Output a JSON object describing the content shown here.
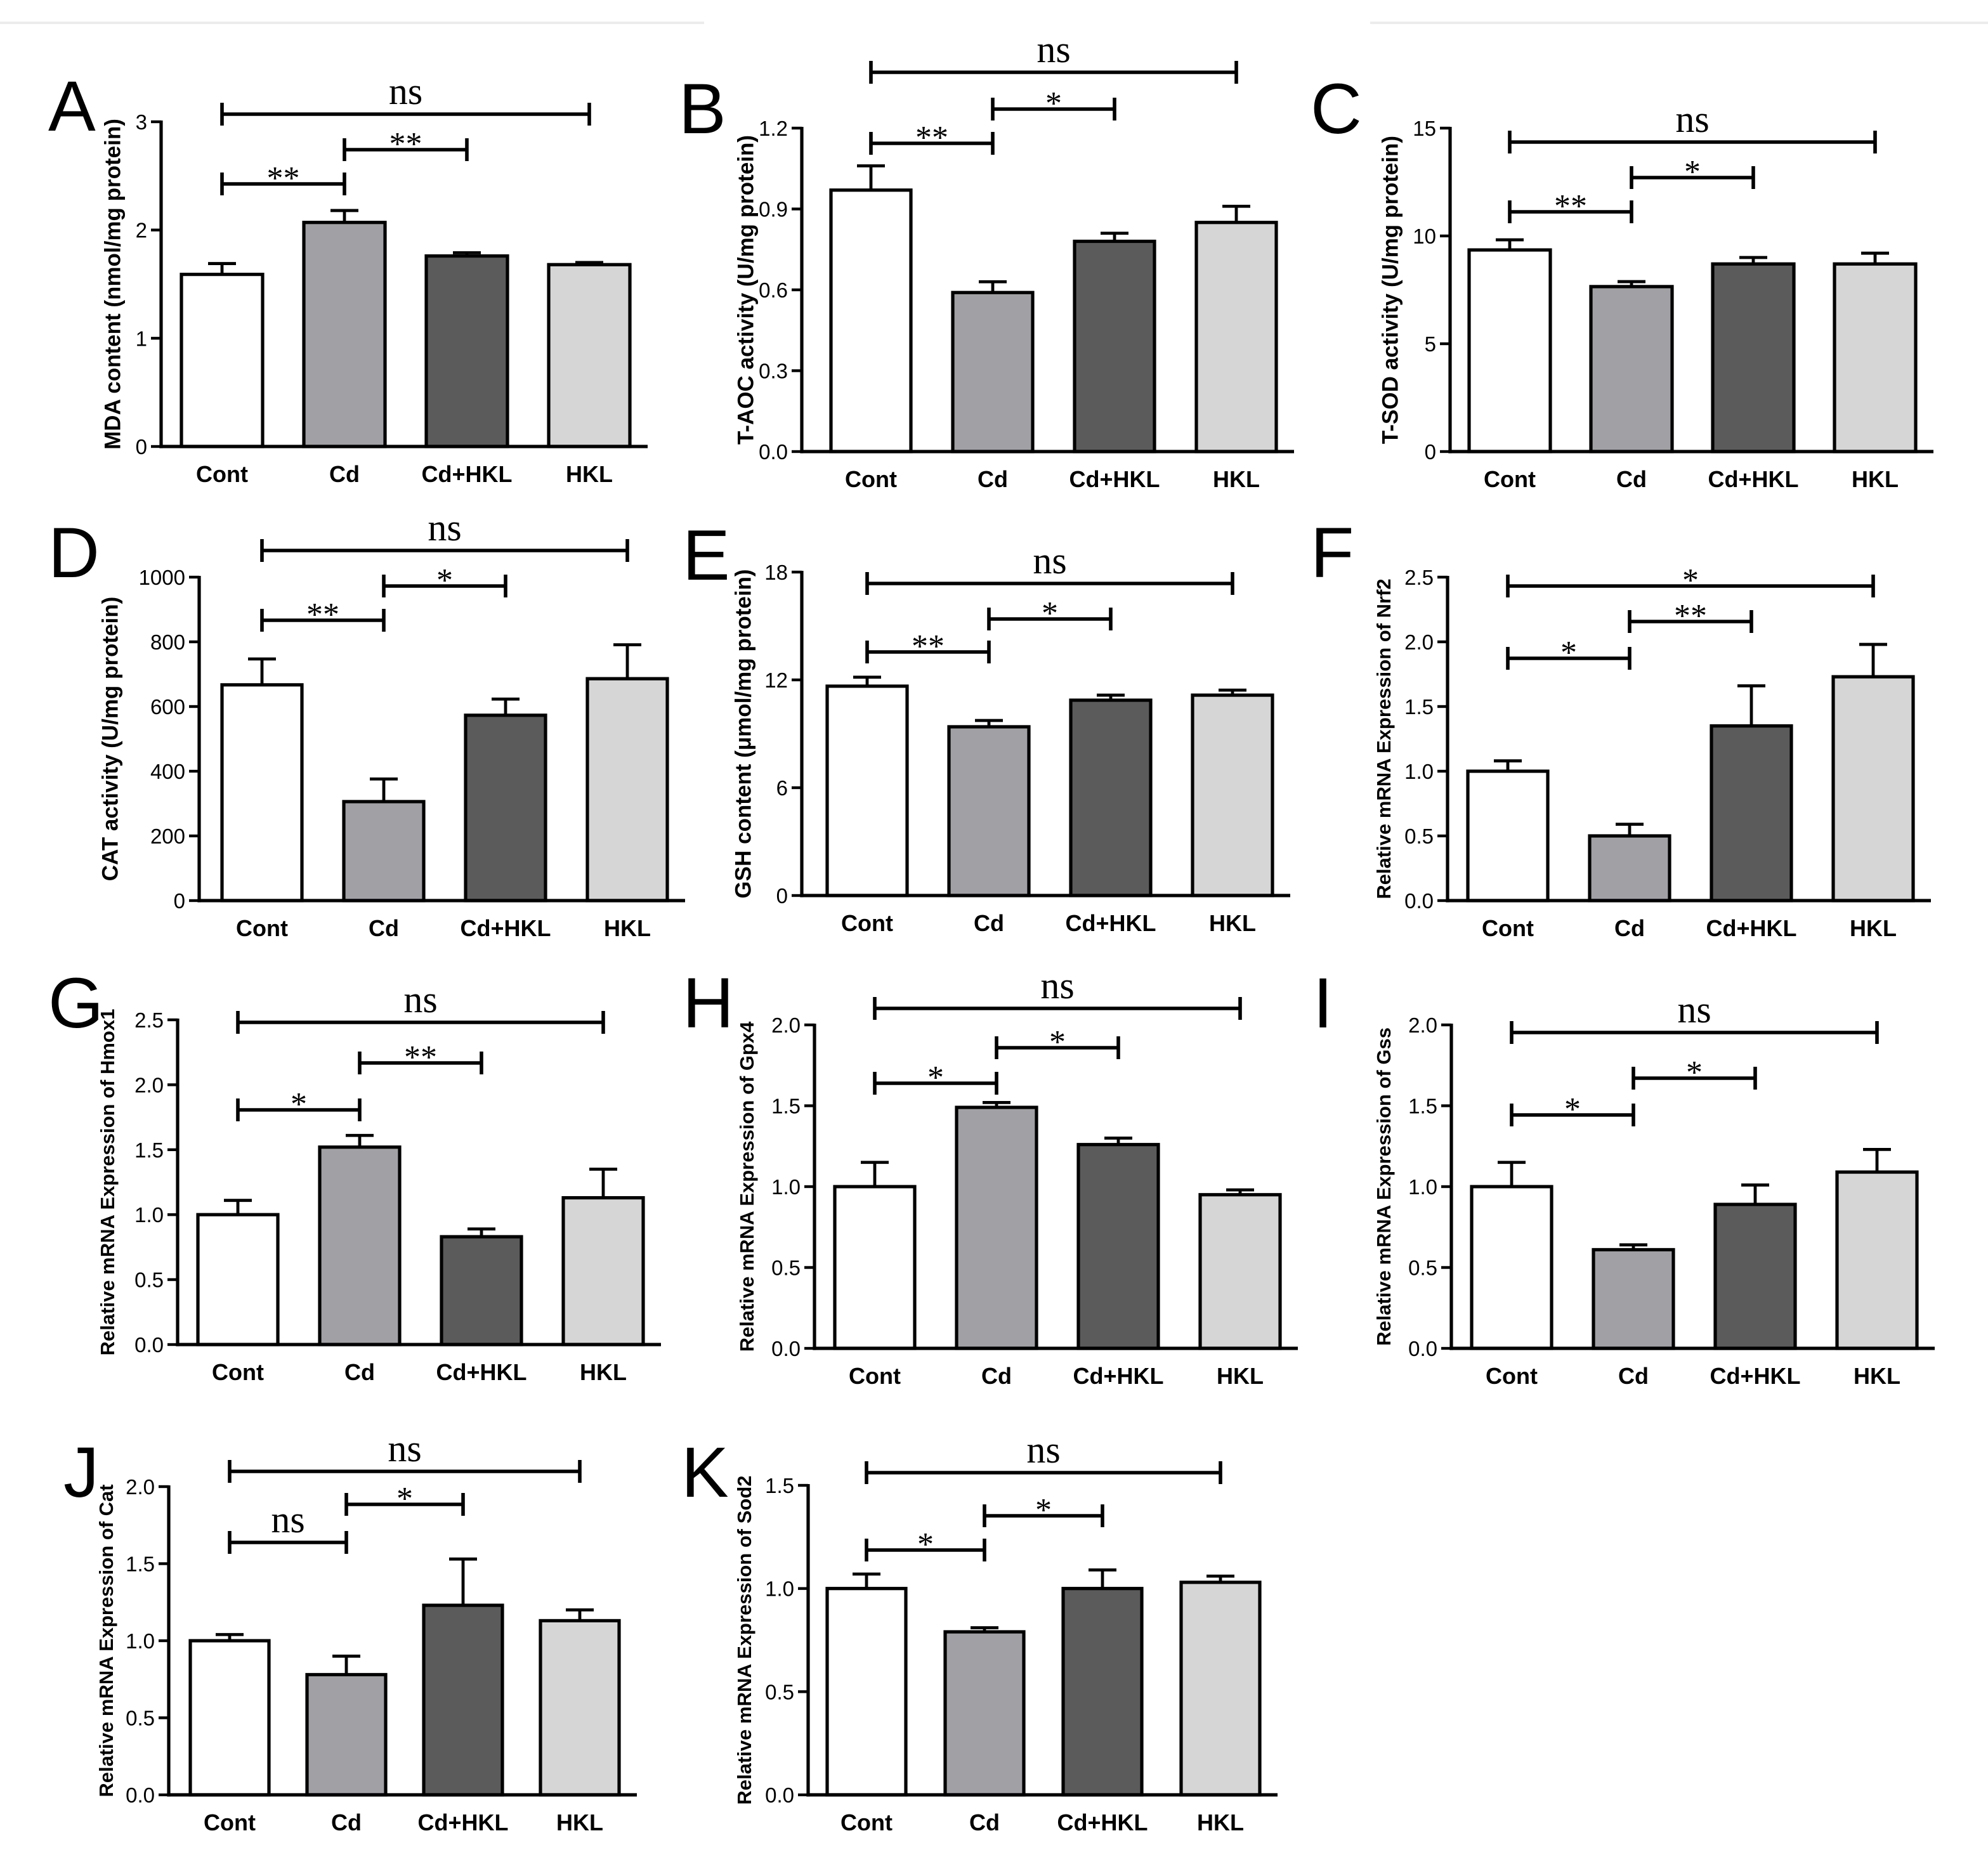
{
  "bar_colors": [
    "#ffffff",
    "#a1a1a5",
    "#5b5b5b",
    "#d6d6d6"
  ],
  "chart_data": [
    {
      "panel": "A",
      "type": "bar",
      "ylabel": "MDA content (nmol/mg protein)",
      "categories": [
        "Cont",
        "Cd",
        "Cd+HKL",
        "HKL"
      ],
      "values": [
        1.59,
        2.07,
        1.76,
        1.68
      ],
      "errors": [
        0.1,
        0.11,
        0.03,
        0.02
      ],
      "ylim": [
        0,
        3
      ],
      "yticks": [
        0,
        1,
        2,
        3
      ],
      "ytick_labels": [
        "0",
        "1",
        "2",
        "3"
      ],
      "comparisons": [
        {
          "pair": [
            0,
            3
          ],
          "label": "ns"
        },
        {
          "pair": [
            1,
            2
          ],
          "label": "**"
        },
        {
          "pair": [
            0,
            1
          ],
          "label": "**"
        }
      ]
    },
    {
      "panel": "B",
      "type": "bar",
      "ylabel": "T-AOC activity (U/mg protein)",
      "categories": [
        "Cont",
        "Cd",
        "Cd+HKL",
        "HKL"
      ],
      "values": [
        0.97,
        0.59,
        0.78,
        0.85
      ],
      "errors": [
        0.09,
        0.04,
        0.03,
        0.06
      ],
      "ylim": [
        0,
        1.2
      ],
      "yticks": [
        0,
        0.3,
        0.6,
        0.9,
        1.2
      ],
      "ytick_labels": [
        "0.0",
        "0.3",
        "0.6",
        "0.9",
        "1.2"
      ],
      "comparisons": [
        {
          "pair": [
            0,
            3
          ],
          "label": "ns"
        },
        {
          "pair": [
            1,
            2
          ],
          "label": "*"
        },
        {
          "pair": [
            0,
            1
          ],
          "label": "**"
        }
      ]
    },
    {
      "panel": "C",
      "type": "bar",
      "ylabel": "T-SOD activity (U/mg protein)",
      "categories": [
        "Cont",
        "Cd",
        "Cd+HKL",
        "HKL"
      ],
      "values": [
        9.35,
        7.65,
        8.7,
        8.7
      ],
      "errors": [
        0.47,
        0.23,
        0.3,
        0.5
      ],
      "ylim": [
        0,
        15
      ],
      "yticks": [
        0,
        5,
        10,
        15
      ],
      "ytick_labels": [
        "0",
        "5",
        "10",
        "15"
      ],
      "comparisons": [
        {
          "pair": [
            0,
            3
          ],
          "label": "ns"
        },
        {
          "pair": [
            1,
            2
          ],
          "label": "*"
        },
        {
          "pair": [
            0,
            1
          ],
          "label": "**"
        }
      ]
    },
    {
      "panel": "D",
      "type": "bar",
      "ylabel": "CAT activity (U/mg protein)",
      "categories": [
        "Cont",
        "Cd",
        "Cd+HKL",
        "HKL"
      ],
      "values": [
        667,
        306,
        573,
        686
      ],
      "errors": [
        80,
        70,
        50,
        105
      ],
      "ylim": [
        0,
        1000
      ],
      "yticks": [
        0,
        200,
        400,
        600,
        800,
        1000
      ],
      "ytick_labels": [
        "0",
        "200",
        "400",
        "600",
        "800",
        "1000"
      ],
      "comparisons": [
        {
          "pair": [
            0,
            3
          ],
          "label": "ns"
        },
        {
          "pair": [
            1,
            2
          ],
          "label": "*"
        },
        {
          "pair": [
            0,
            1
          ],
          "label": "**"
        }
      ]
    },
    {
      "panel": "E",
      "type": "bar",
      "ylabel": "GSH content (μmol/mg protein)",
      "categories": [
        "Cont",
        "Cd",
        "Cd+HKL",
        "HKL"
      ],
      "values": [
        11.65,
        9.39,
        10.87,
        11.15
      ],
      "errors": [
        0.5,
        0.35,
        0.28,
        0.28
      ],
      "ylim": [
        0,
        18
      ],
      "yticks": [
        0,
        6,
        12,
        18
      ],
      "ytick_labels": [
        "0",
        "6",
        "12",
        "18"
      ],
      "comparisons": [
        {
          "pair": [
            0,
            3
          ],
          "label": "ns"
        },
        {
          "pair": [
            1,
            2
          ],
          "label": "*"
        },
        {
          "pair": [
            0,
            1
          ],
          "label": "**"
        }
      ]
    },
    {
      "panel": "F",
      "type": "bar",
      "ylabel": "Relative mRNA Expression of Nrf2",
      "categories": [
        "Cont",
        "Cd",
        "Cd+HKL",
        "HKL"
      ],
      "values": [
        1.0,
        0.5,
        1.35,
        1.73
      ],
      "errors": [
        0.08,
        0.09,
        0.31,
        0.25
      ],
      "ylim": [
        0,
        2.5
      ],
      "yticks": [
        0,
        0.5,
        1.0,
        1.5,
        2.0,
        2.5
      ],
      "ytick_labels": [
        "0.0",
        "0.5",
        "1.0",
        "1.5",
        "2.0",
        "2.5"
      ],
      "comparisons": [
        {
          "pair": [
            0,
            3
          ],
          "label": "*"
        },
        {
          "pair": [
            1,
            2
          ],
          "label": "**"
        },
        {
          "pair": [
            0,
            1
          ],
          "label": "*"
        }
      ]
    },
    {
      "panel": "G",
      "type": "bar",
      "ylabel": "Relative mRNA Expression of Hmox1",
      "categories": [
        "Cont",
        "Cd",
        "Cd+HKL",
        "HKL"
      ],
      "values": [
        1.0,
        1.52,
        0.83,
        1.13
      ],
      "errors": [
        0.11,
        0.09,
        0.06,
        0.22
      ],
      "ylim": [
        0,
        2.5
      ],
      "yticks": [
        0,
        0.5,
        1.0,
        1.5,
        2.0,
        2.5
      ],
      "ytick_labels": [
        "0.0",
        "0.5",
        "1.0",
        "1.5",
        "2.0",
        "2.5"
      ],
      "comparisons": [
        {
          "pair": [
            0,
            3
          ],
          "label": "ns"
        },
        {
          "pair": [
            1,
            2
          ],
          "label": "**"
        },
        {
          "pair": [
            0,
            1
          ],
          "label": "*"
        }
      ]
    },
    {
      "panel": "H",
      "type": "bar",
      "ylabel": "Relative mRNA Expression of Gpx4",
      "categories": [
        "Cont",
        "Cd",
        "Cd+HKL",
        "HKL"
      ],
      "values": [
        1.0,
        1.49,
        1.26,
        0.95
      ],
      "errors": [
        0.15,
        0.03,
        0.04,
        0.03
      ],
      "ylim": [
        0,
        2.0
      ],
      "yticks": [
        0,
        0.5,
        1.0,
        1.5,
        2.0
      ],
      "ytick_labels": [
        "0.0",
        "0.5",
        "1.0",
        "1.5",
        "2.0"
      ],
      "comparisons": [
        {
          "pair": [
            0,
            3
          ],
          "label": "ns"
        },
        {
          "pair": [
            1,
            2
          ],
          "label": "*"
        },
        {
          "pair": [
            0,
            1
          ],
          "label": "*"
        }
      ]
    },
    {
      "panel": "I",
      "type": "bar",
      "ylabel": "Relative mRNA Expression of Gss",
      "categories": [
        "Cont",
        "Cd",
        "Cd+HKL",
        "HKL"
      ],
      "values": [
        1.0,
        0.61,
        0.89,
        1.09
      ],
      "errors": [
        0.15,
        0.03,
        0.12,
        0.14
      ],
      "ylim": [
        0,
        2.0
      ],
      "yticks": [
        0,
        0.5,
        1.0,
        1.5,
        2.0
      ],
      "ytick_labels": [
        "0.0",
        "0.5",
        "1.0",
        "1.5",
        "2.0"
      ],
      "comparisons": [
        {
          "pair": [
            0,
            3
          ],
          "label": "ns"
        },
        {
          "pair": [
            1,
            2
          ],
          "label": "*"
        },
        {
          "pair": [
            0,
            1
          ],
          "label": "*"
        }
      ]
    },
    {
      "panel": "J",
      "type": "bar",
      "ylabel": "Relative mRNA Expression of Cat",
      "categories": [
        "Cont",
        "Cd",
        "Cd+HKL",
        "HKL"
      ],
      "values": [
        1.0,
        0.78,
        1.23,
        1.13
      ],
      "errors": [
        0.04,
        0.12,
        0.3,
        0.07
      ],
      "ylim": [
        0,
        2.0
      ],
      "yticks": [
        0,
        0.5,
        1.0,
        1.5,
        2.0
      ],
      "ytick_labels": [
        "0.0",
        "0.5",
        "1.0",
        "1.5",
        "2.0"
      ],
      "comparisons": [
        {
          "pair": [
            0,
            3
          ],
          "label": "ns"
        },
        {
          "pair": [
            1,
            2
          ],
          "label": "*"
        },
        {
          "pair": [
            0,
            1
          ],
          "label": "ns"
        }
      ]
    },
    {
      "panel": "K",
      "type": "bar",
      "ylabel": "Relative mRNA Expression of Sod2",
      "categories": [
        "Cont",
        "Cd",
        "Cd+HKL",
        "HKL"
      ],
      "values": [
        1.0,
        0.79,
        1.0,
        1.03
      ],
      "errors": [
        0.07,
        0.02,
        0.09,
        0.03
      ],
      "ylim": [
        0,
        1.5
      ],
      "yticks": [
        0,
        0.5,
        1.0,
        1.5
      ],
      "ytick_labels": [
        "0.0",
        "0.5",
        "1.0",
        "1.5"
      ],
      "comparisons": [
        {
          "pair": [
            0,
            3
          ],
          "label": "ns"
        },
        {
          "pair": [
            1,
            2
          ],
          "label": "*"
        },
        {
          "pair": [
            0,
            1
          ],
          "label": "*"
        }
      ]
    }
  ]
}
